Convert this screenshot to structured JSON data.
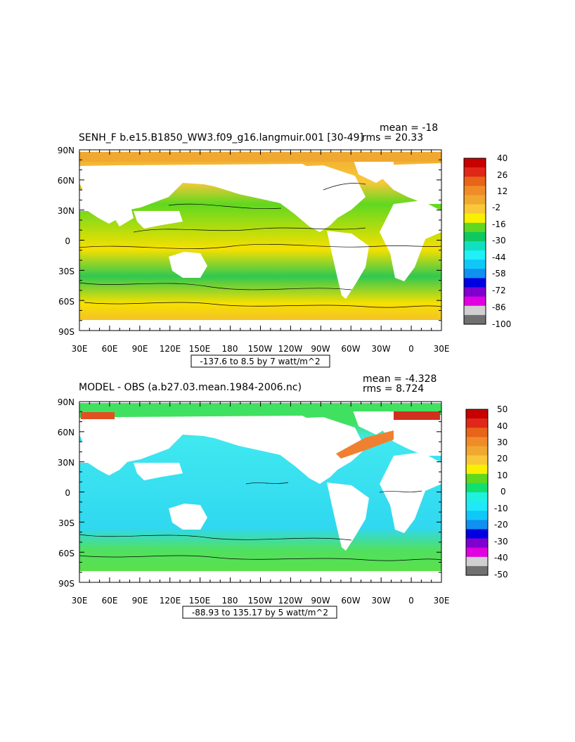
{
  "chart_data": [
    {
      "type": "heatmap",
      "title": "SENH_F b.e15.B1850_WW3.f09_g16.langmuir.001 [30-49]",
      "stats": [
        "mean = -18",
        "rms = 20.33"
      ],
      "y_ticks": [
        "90N",
        "60N",
        "30N",
        "0",
        "30S",
        "60S",
        "90S"
      ],
      "x_ticks": [
        "30E",
        "60E",
        "90E",
        "120E",
        "150E",
        "180",
        "150W",
        "120W",
        "90W",
        "60W",
        "30W",
        "0",
        "30E"
      ],
      "range_label": "-137.6 to 8.5 by 7 watt/m^2",
      "colorbar": {
        "labels": [
          "40",
          "26",
          "12",
          "-2",
          "-16",
          "-30",
          "-44",
          "-58",
          "-72",
          "-86",
          "-100"
        ],
        "colors": [
          "#c80000",
          "#e02818",
          "#e86418",
          "#f08c28",
          "#f0a830",
          "#f8c838",
          "#f8f000",
          "#60d820",
          "#10c860",
          "#10e0c0",
          "#20f0f8",
          "#10c8f8",
          "#1090f0",
          "#0000e0",
          "#8000d0",
          "#e000e0",
          "#d0d0d0",
          "#707070"
        ]
      }
    },
    {
      "type": "heatmap",
      "title": "MODEL - OBS (a.b27.03.mean.1984-2006.nc)",
      "stats": [
        "mean = -4.328",
        "rms = 8.724"
      ],
      "y_ticks": [
        "90N",
        "60N",
        "30N",
        "0",
        "30S",
        "60S",
        "90S"
      ],
      "x_ticks": [
        "30E",
        "60E",
        "90E",
        "120E",
        "150E",
        "180",
        "150W",
        "120W",
        "90W",
        "60W",
        "30W",
        "0",
        "30E"
      ],
      "range_label": "-88.93 to 135.17 by 5 watt/m^2",
      "colorbar": {
        "labels": [
          "50",
          "40",
          "30",
          "20",
          "10",
          "0",
          "-10",
          "-20",
          "-30",
          "-40",
          "-50"
        ],
        "colors": [
          "#c80000",
          "#e02818",
          "#e86418",
          "#f08c28",
          "#f0a830",
          "#f8c838",
          "#f8f000",
          "#60d820",
          "#10e070",
          "#20f0e0",
          "#20e8f8",
          "#10c8f8",
          "#1090f0",
          "#0000e0",
          "#8000d0",
          "#e000e0",
          "#d0d0d0",
          "#707070"
        ]
      }
    }
  ]
}
